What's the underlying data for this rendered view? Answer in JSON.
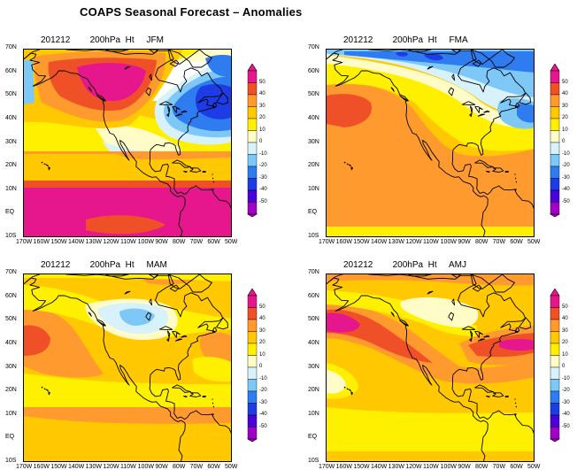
{
  "title": "COAPS Seasonal Forecast – Anomalies",
  "panels": [
    {
      "date": "201212",
      "variable": "200hPa  Ht",
      "season": "JFM"
    },
    {
      "date": "201212",
      "variable": "200hPa  Ht",
      "season": "FMA"
    },
    {
      "date": "201212",
      "variable": "200hPa  Ht",
      "season": "MAM"
    },
    {
      "date": "201212",
      "variable": "200hPa  Ht",
      "season": "AMJ"
    }
  ],
  "lat_labels": [
    "70N",
    "60N",
    "50N",
    "40N",
    "30N",
    "20N",
    "10N",
    "EQ",
    "10S"
  ],
  "lon_labels": [
    "170W",
    "160W",
    "150W",
    "140W",
    "130W",
    "120W",
    "110W",
    "100W",
    "90W",
    "80W",
    "70W",
    "60W",
    "50W"
  ],
  "colorbar_labels": [
    "50",
    "40",
    "30",
    "20",
    "10",
    "0",
    "-10",
    "-20",
    "-30",
    "-40",
    "-50"
  ],
  "colors": {
    "c_m50": "#a000c8",
    "c_m40": "#4a00d8",
    "c_m30": "#1e3ce6",
    "c_m20": "#2e7cf0",
    "c_m10": "#7ec8f8",
    "c_m0": "#d8f2fc",
    "c_p0": "#fffcc8",
    "c_p10": "#fff000",
    "c_p20": "#ffc800",
    "c_p30": "#ff9b2e",
    "c_p40": "#f05028",
    "c_p50": "#e6168c",
    "coast": "#000000"
  }
}
